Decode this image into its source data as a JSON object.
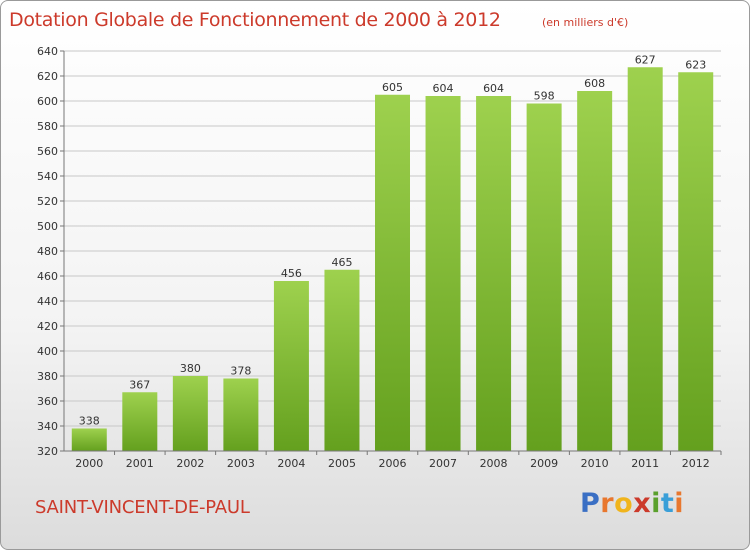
{
  "header": {
    "title": "Dotation Globale de Fonctionnement de 2000 à 2012",
    "unit_note": "(en milliers d'€)"
  },
  "footer": {
    "commune": "SAINT-VINCENT-DE-PAUL",
    "logo": {
      "letters": [
        "P",
        "r",
        "o",
        "x",
        "i",
        "t",
        "i"
      ],
      "colors": [
        "#3a6fc4",
        "#e8772e",
        "#f0b41c",
        "#cc3a2b",
        "#5aa02c",
        "#3a9fd8",
        "#e8772e"
      ]
    }
  },
  "colors": {
    "accent_text": "#cc3a2b",
    "bar_light": "#9ed14e",
    "bar_dark": "#64a01e",
    "grid": "#c8c8c8"
  },
  "chart_data": {
    "type": "bar",
    "title": "Dotation Globale de Fonctionnement de 2000 à 2012",
    "subtitle": "(en milliers d'€)",
    "categories": [
      "2000",
      "2001",
      "2002",
      "2003",
      "2004",
      "2005",
      "2006",
      "2007",
      "2008",
      "2009",
      "2010",
      "2011",
      "2012"
    ],
    "values": [
      338,
      367,
      380,
      378,
      456,
      465,
      605,
      604,
      604,
      598,
      608,
      627,
      623
    ],
    "ylim": [
      320,
      640
    ],
    "yticks": [
      320,
      340,
      360,
      380,
      400,
      420,
      440,
      460,
      480,
      500,
      520,
      540,
      560,
      580,
      600,
      620,
      640
    ],
    "grid": true,
    "data_labels": true
  }
}
